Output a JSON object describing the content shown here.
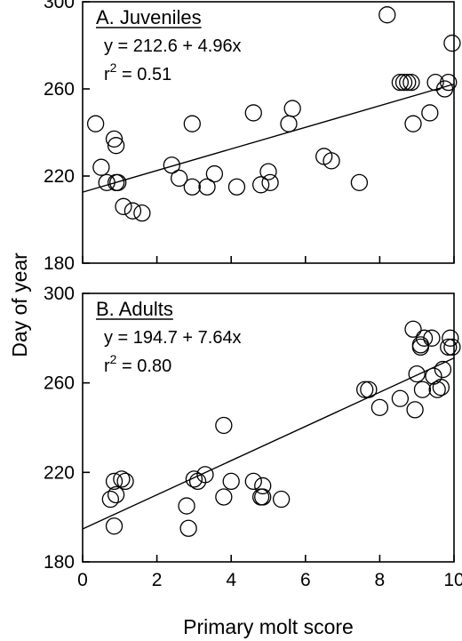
{
  "chart_data": {
    "type": "scatter",
    "xlabel": "Primary molt score",
    "ylabel": "Day of year",
    "xlim": [
      0,
      10
    ],
    "xticks": [
      0,
      2,
      4,
      6,
      8,
      10
    ],
    "panels": [
      {
        "title": "A. Juveniles",
        "equation": "y = 212.6 + 4.96x",
        "r2_prefix": "r",
        "r2_sup": "2",
        "r2_value": " = 0.51",
        "ylim": [
          180,
          300
        ],
        "yticks": [
          180,
          220,
          260,
          300
        ],
        "fit": {
          "intercept": 212.6,
          "slope": 4.96
        },
        "x": [
          0.35,
          0.5,
          0.65,
          0.85,
          0.9,
          0.9,
          0.95,
          1.1,
          1.35,
          1.6,
          2.4,
          2.6,
          2.95,
          2.95,
          3.35,
          3.55,
          4.15,
          4.6,
          4.8,
          5.0,
          5.05,
          5.55,
          5.65,
          6.5,
          6.7,
          7.45,
          8.2,
          8.55,
          8.65,
          8.75,
          8.85,
          8.9,
          9.35,
          9.5,
          9.75,
          9.85,
          9.95
        ],
        "y": [
          244,
          224,
          217,
          237,
          234,
          217,
          217,
          206,
          204,
          203,
          225,
          219,
          244,
          215,
          215,
          221,
          215,
          249,
          216,
          222,
          217,
          244,
          251,
          229,
          227,
          217,
          294,
          263,
          263,
          263,
          263,
          244,
          249,
          263,
          260,
          263,
          281
        ]
      },
      {
        "title": "B. Adults",
        "equation": "y = 194.7 + 7.64x",
        "r2_prefix": "r",
        "r2_sup": "2",
        "r2_value": " = 0.80",
        "ylim": [
          180,
          300
        ],
        "yticks": [
          180,
          220,
          260,
          300
        ],
        "fit": {
          "intercept": 194.7,
          "slope": 7.64
        },
        "x": [
          0.75,
          0.85,
          0.85,
          0.9,
          1.05,
          1.15,
          2.8,
          2.85,
          3.0,
          3.1,
          3.3,
          3.8,
          3.8,
          4.0,
          4.6,
          4.8,
          4.85,
          4.85,
          5.35,
          7.6,
          7.7,
          8.0,
          8.55,
          8.9,
          8.95,
          9.0,
          9.1,
          9.1,
          9.15,
          9.2,
          9.4,
          9.45,
          9.55,
          9.65,
          9.7,
          9.85,
          9.9,
          9.95
        ],
        "y": [
          208,
          216,
          196,
          210,
          217,
          216,
          205,
          195,
          217,
          216,
          219,
          241,
          209,
          216,
          216,
          209,
          214,
          209,
          208,
          257,
          257,
          249,
          253,
          284,
          248,
          264,
          276,
          277,
          257,
          280,
          280,
          263,
          257,
          258,
          266,
          276,
          280,
          276
        ]
      }
    ]
  }
}
